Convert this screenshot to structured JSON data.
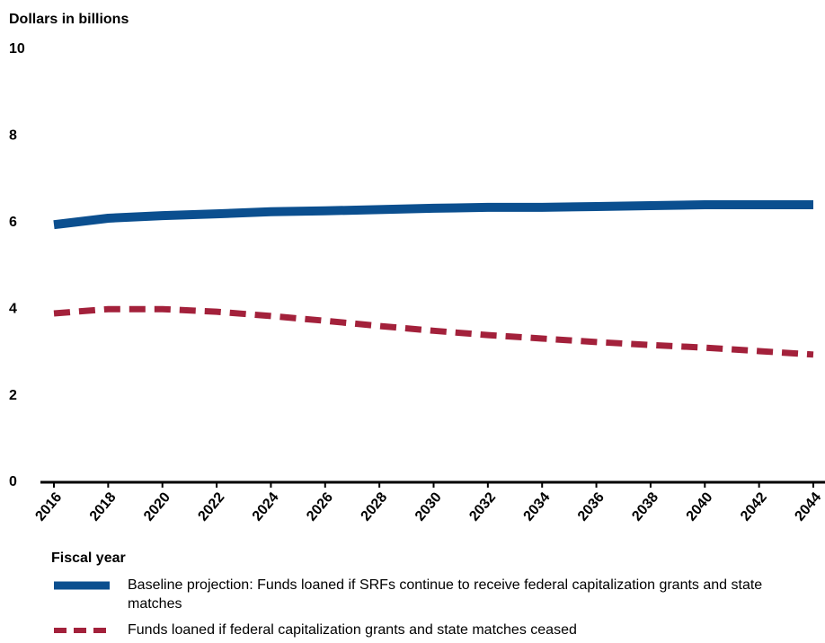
{
  "chart_data": {
    "type": "line",
    "y_label": "Dollars in billions",
    "x_label": "Fiscal year",
    "x": [
      2016,
      2018,
      2020,
      2022,
      2024,
      2026,
      2028,
      2030,
      2032,
      2034,
      2036,
      2038,
      2040,
      2042,
      2044
    ],
    "series": [
      {
        "name": "Baseline projection: Funds loaned if SRFs continue to receive federal capitalization grants and state matches",
        "color": "#0b4f8f",
        "dash": false,
        "values": [
          5.95,
          6.1,
          6.16,
          6.2,
          6.25,
          6.27,
          6.3,
          6.33,
          6.35,
          6.35,
          6.37,
          6.39,
          6.41,
          6.41,
          6.41
        ]
      },
      {
        "name": "Funds loaned if federal capitalization grants and state matches ceased",
        "color": "#a3213b",
        "dash": true,
        "values": [
          3.9,
          4.0,
          4.0,
          3.94,
          3.84,
          3.73,
          3.61,
          3.5,
          3.4,
          3.32,
          3.24,
          3.17,
          3.11,
          3.03,
          2.95
        ]
      }
    ],
    "xlim": [
      2016,
      2044
    ],
    "xticks": [
      2016,
      2018,
      2020,
      2022,
      2024,
      2026,
      2028,
      2030,
      2032,
      2034,
      2036,
      2038,
      2040,
      2042,
      2044
    ],
    "ylim": [
      0,
      10
    ],
    "yticks": [
      0,
      2,
      4,
      6,
      8,
      10
    ],
    "grid": false
  }
}
